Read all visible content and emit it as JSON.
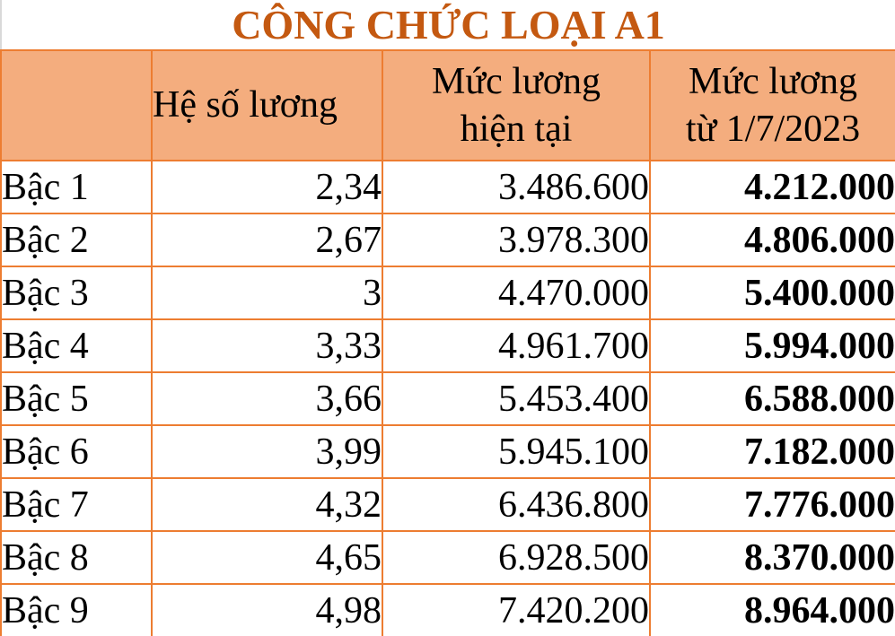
{
  "title": "CÔNG CHỨC LOẠI A1",
  "header": {
    "empty": "",
    "coefficient": "Hệ số lương",
    "current": "Mức lương\nhiện tại",
    "new": "Mức lương\ntừ 1/7/2023"
  },
  "rows": [
    {
      "level": "Bậc 1",
      "coefficient": "2,34",
      "current": "3.486.600",
      "new": "4.212.000"
    },
    {
      "level": "Bậc 2",
      "coefficient": "2,67",
      "current": "3.978.300",
      "new": "4.806.000"
    },
    {
      "level": "Bậc 3",
      "coefficient": "3",
      "current": "4.470.000",
      "new": "5.400.000"
    },
    {
      "level": "Bậc 4",
      "coefficient": "3,33",
      "current": "4.961.700",
      "new": "5.994.000"
    },
    {
      "level": "Bậc 5",
      "coefficient": "3,66",
      "current": "5.453.400",
      "new": "6.588.000"
    },
    {
      "level": "Bậc 6",
      "coefficient": "3,99",
      "current": "5.945.100",
      "new": "7.182.000"
    },
    {
      "level": "Bậc 7",
      "coefficient": "4,32",
      "current": "6.436.800",
      "new": "7.776.000"
    },
    {
      "level": "Bậc 8",
      "coefficient": "4,65",
      "current": "6.928.500",
      "new": "8.370.000"
    },
    {
      "level": "Bậc 9",
      "coefficient": "4,98",
      "current": "7.420.200",
      "new": "8.964.000"
    }
  ],
  "colors": {
    "header_bg": "#F4AD7E",
    "border": "#ED7D31",
    "title_text": "#C45911",
    "body_text": "#000000"
  }
}
